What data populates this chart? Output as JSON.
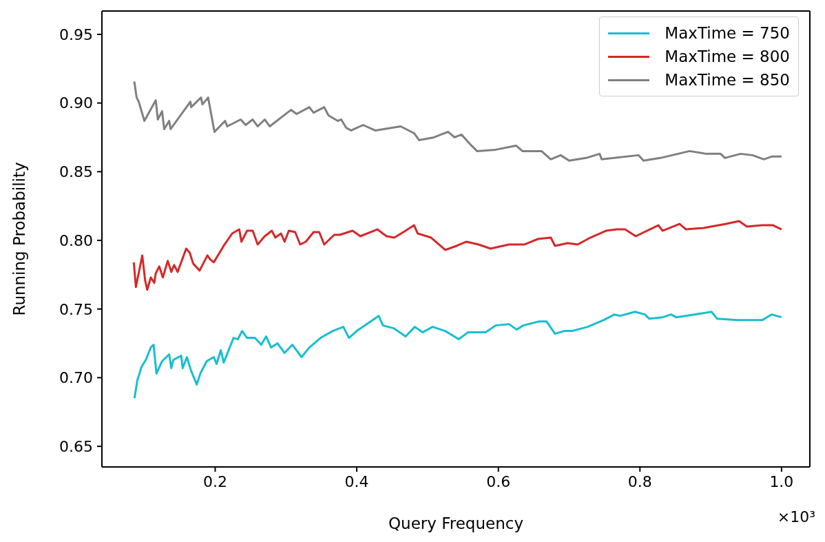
{
  "chart_data": {
    "type": "line",
    "xlabel": "Query Frequency",
    "ylabel": "Running Probability",
    "xlim": [
      0.04,
      1.04
    ],
    "xticks": [
      0.2,
      0.4,
      0.6,
      0.8,
      {
        "value": 1,
        "label": "1.0"
      }
    ],
    "ylim": [
      0.635,
      0.967
    ],
    "yticks": [
      0.65,
      {
        "value": 0.7,
        "label": "0.70"
      },
      0.75,
      {
        "value": 0.8,
        "label": "0.80"
      },
      0.85,
      {
        "value": 0.9,
        "label": "0.90"
      },
      0.95
    ],
    "legend": "top right",
    "line_style": "solid",
    "annotations": [
      "×10³"
    ],
    "series": [
      {
        "name": "MaxTime = 750",
        "color": "#17becf",
        "x": [
          0.086,
          0.09,
          0.096,
          0.102,
          0.109,
          0.113,
          0.117,
          0.125,
          0.135,
          0.138,
          0.141,
          0.152,
          0.154,
          0.16,
          0.166,
          0.174,
          0.179,
          0.188,
          0.198,
          0.202,
          0.208,
          0.212,
          0.226,
          0.232,
          0.238,
          0.245,
          0.256,
          0.265,
          0.272,
          0.279,
          0.288,
          0.298,
          0.309,
          0.322,
          0.333,
          0.349,
          0.366,
          0.376,
          0.381,
          0.389,
          0.4,
          0.431,
          0.437,
          0.452,
          0.469,
          0.482,
          0.493,
          0.507,
          0.525,
          0.544,
          0.557,
          0.582,
          0.596,
          0.615,
          0.626,
          0.635,
          0.658,
          0.668,
          0.68,
          0.693,
          0.704,
          0.726,
          0.749,
          0.764,
          0.772,
          0.793,
          0.807,
          0.813,
          0.832,
          0.844,
          0.851,
          0.877,
          0.901,
          0.909,
          0.938,
          0.957,
          0.973,
          0.986,
          1.0
        ],
        "values": [
          0.685,
          0.698,
          0.708,
          0.713,
          0.722,
          0.724,
          0.703,
          0.712,
          0.717,
          0.707,
          0.713,
          0.716,
          0.707,
          0.715,
          0.705,
          0.695,
          0.703,
          0.712,
          0.715,
          0.71,
          0.72,
          0.711,
          0.729,
          0.728,
          0.734,
          0.729,
          0.729,
          0.724,
          0.73,
          0.722,
          0.725,
          0.718,
          0.724,
          0.715,
          0.722,
          0.729,
          0.734,
          0.736,
          0.737,
          0.729,
          0.734,
          0.745,
          0.738,
          0.736,
          0.73,
          0.737,
          0.733,
          0.737,
          0.734,
          0.728,
          0.733,
          0.733,
          0.738,
          0.739,
          0.735,
          0.738,
          0.741,
          0.741,
          0.732,
          0.734,
          0.734,
          0.737,
          0.742,
          0.746,
          0.745,
          0.748,
          0.746,
          0.743,
          0.744,
          0.746,
          0.744,
          0.746,
          0.748,
          0.743,
          0.742,
          0.742,
          0.742,
          0.746,
          0.744
        ]
      },
      {
        "name": "MaxTime = 800",
        "color": "#d62728",
        "x": [
          0.085,
          0.088,
          0.097,
          0.101,
          0.104,
          0.109,
          0.114,
          0.116,
          0.121,
          0.126,
          0.133,
          0.138,
          0.142,
          0.147,
          0.159,
          0.164,
          0.169,
          0.178,
          0.189,
          0.193,
          0.198,
          0.212,
          0.224,
          0.234,
          0.237,
          0.245,
          0.253,
          0.26,
          0.27,
          0.28,
          0.285,
          0.293,
          0.298,
          0.304,
          0.313,
          0.32,
          0.328,
          0.339,
          0.347,
          0.354,
          0.368,
          0.376,
          0.394,
          0.405,
          0.429,
          0.442,
          0.453,
          0.469,
          0.481,
          0.486,
          0.505,
          0.525,
          0.541,
          0.555,
          0.572,
          0.589,
          0.615,
          0.637,
          0.656,
          0.674,
          0.68,
          0.698,
          0.712,
          0.73,
          0.752,
          0.767,
          0.779,
          0.794,
          0.826,
          0.832,
          0.856,
          0.865,
          0.89,
          0.922,
          0.94,
          0.951,
          0.973,
          0.988,
          1.0
        ],
        "values": [
          0.784,
          0.766,
          0.789,
          0.771,
          0.764,
          0.773,
          0.769,
          0.776,
          0.781,
          0.773,
          0.785,
          0.777,
          0.782,
          0.777,
          0.794,
          0.791,
          0.783,
          0.778,
          0.789,
          0.786,
          0.784,
          0.796,
          0.805,
          0.808,
          0.799,
          0.807,
          0.807,
          0.797,
          0.803,
          0.807,
          0.802,
          0.805,
          0.799,
          0.807,
          0.806,
          0.797,
          0.799,
          0.806,
          0.806,
          0.797,
          0.804,
          0.804,
          0.807,
          0.803,
          0.808,
          0.803,
          0.802,
          0.807,
          0.811,
          0.805,
          0.802,
          0.793,
          0.796,
          0.799,
          0.797,
          0.794,
          0.797,
          0.797,
          0.801,
          0.802,
          0.796,
          0.798,
          0.797,
          0.802,
          0.807,
          0.808,
          0.808,
          0.803,
          0.811,
          0.807,
          0.812,
          0.808,
          0.809,
          0.812,
          0.814,
          0.81,
          0.811,
          0.811,
          0.808
        ]
      },
      {
        "name": "MaxTime = 850",
        "color": "#7f7f7f",
        "x": [
          0.085,
          0.086,
          0.089,
          0.092,
          0.096,
          0.1,
          0.116,
          0.119,
          0.125,
          0.128,
          0.135,
          0.137,
          0.165,
          0.166,
          0.18,
          0.182,
          0.19,
          0.199,
          0.214,
          0.217,
          0.236,
          0.243,
          0.253,
          0.26,
          0.27,
          0.277,
          0.307,
          0.315,
          0.333,
          0.339,
          0.354,
          0.36,
          0.373,
          0.378,
          0.385,
          0.392,
          0.409,
          0.426,
          0.462,
          0.481,
          0.488,
          0.509,
          0.529,
          0.538,
          0.548,
          0.562,
          0.57,
          0.596,
          0.625,
          0.634,
          0.661,
          0.674,
          0.688,
          0.7,
          0.724,
          0.743,
          0.746,
          0.798,
          0.805,
          0.829,
          0.87,
          0.894,
          0.914,
          0.92,
          0.942,
          0.959,
          0.975,
          0.986,
          1.0
        ],
        "values": [
          0.914,
          0.915,
          0.904,
          0.901,
          0.894,
          0.887,
          0.902,
          0.888,
          0.894,
          0.881,
          0.887,
          0.881,
          0.901,
          0.897,
          0.904,
          0.899,
          0.904,
          0.879,
          0.887,
          0.883,
          0.888,
          0.884,
          0.888,
          0.883,
          0.888,
          0.883,
          0.895,
          0.892,
          0.897,
          0.893,
          0.897,
          0.891,
          0.887,
          0.888,
          0.882,
          0.88,
          0.884,
          0.88,
          0.883,
          0.878,
          0.873,
          0.875,
          0.879,
          0.875,
          0.877,
          0.869,
          0.865,
          0.866,
          0.869,
          0.865,
          0.865,
          0.859,
          0.862,
          0.858,
          0.86,
          0.863,
          0.859,
          0.862,
          0.858,
          0.86,
          0.865,
          0.863,
          0.863,
          0.86,
          0.863,
          0.862,
          0.859,
          0.861,
          0.861
        ]
      }
    ]
  }
}
